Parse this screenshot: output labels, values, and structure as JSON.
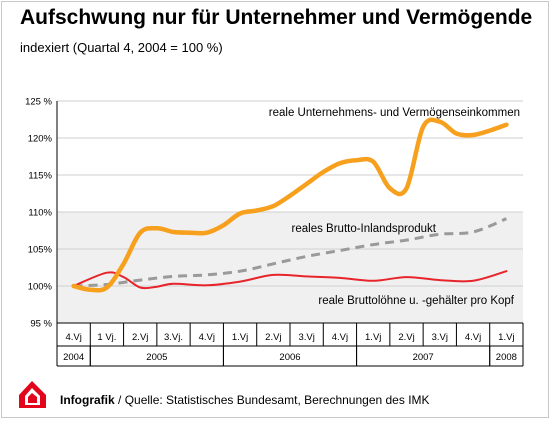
{
  "title": "Aufschwung nur für Unternehmer und Vermögende",
  "subtitle": "indexiert (Quartal 4, 2004 = 100 %)",
  "footer": {
    "label": "Infografik",
    "separator": " / ",
    "source": "Quelle: Statistisches Bundesamt, Berechnungen des IMK"
  },
  "logo": {
    "icon": "ig-metall-logo-icon",
    "color": "#e3051b"
  },
  "chart_data": {
    "type": "line",
    "ylim": [
      95,
      125
    ],
    "yticks": [
      95,
      100,
      105,
      110,
      115,
      120,
      125
    ],
    "ytick_labels": [
      "95 %",
      "100%",
      "105%",
      "110%",
      "115%",
      "120%",
      "125 %"
    ],
    "categories": [
      "4.Vj",
      "1 Vj.",
      "2.Vj",
      "3.Vj.",
      "4.Vj",
      "1.Vj",
      "2.Vj",
      "3.Vj",
      "4.Vj",
      "1.Vj",
      "2.Vj",
      "3.Vj",
      "4.Vj",
      "1.Vj"
    ],
    "years": [
      {
        "label": "2004",
        "from": 0,
        "to": 0
      },
      {
        "label": "2005",
        "from": 1,
        "to": 4
      },
      {
        "label": "2006",
        "from": 5,
        "to": 8
      },
      {
        "label": "2007",
        "from": 9,
        "to": 12
      },
      {
        "label": "2008",
        "from": 13,
        "to": 13
      }
    ],
    "grid": true,
    "series": [
      {
        "name": "reale Unternehmens- und Vermögenseinkommen",
        "color": "#f7a01d",
        "style": "solid",
        "x": [
          0,
          0.5,
          1,
          1.5,
          2,
          2.5,
          3,
          3.5,
          4,
          4.5,
          5,
          5.5,
          6,
          6.5,
          7,
          7.5,
          8,
          8.5,
          9,
          9.5,
          10,
          10.5,
          11,
          11.5,
          12,
          12.5,
          13
        ],
        "values": [
          100,
          99.5,
          99.8,
          103.0,
          107.2,
          107.8,
          107.3,
          107.2,
          107.2,
          108.2,
          109.8,
          110.2,
          110.8,
          112.2,
          113.8,
          115.4,
          116.6,
          117.0,
          116.8,
          113.2,
          113.2,
          121.5,
          122.2,
          120.6,
          120.4,
          121.0,
          121.8
        ]
      },
      {
        "name": "reales Brutto-Inlandsprodukt",
        "color": "#9a9a9a",
        "style": "dashed",
        "x": [
          0,
          1,
          2,
          3,
          4,
          5,
          6,
          7,
          8,
          9,
          10,
          11,
          12,
          13
        ],
        "values": [
          100,
          100.2,
          100.8,
          101.3,
          101.5,
          102.0,
          103.0,
          104.0,
          104.8,
          105.6,
          106.2,
          107.0,
          107.3,
          109.1
        ]
      },
      {
        "name": "reale Bruttolöhne u. -gehälter pro Kopf",
        "color": "#e8242b",
        "style": "solid",
        "x": [
          0,
          1,
          1.5,
          2,
          2.5,
          3,
          4,
          5,
          6,
          7,
          8,
          9,
          10,
          11,
          12,
          13
        ],
        "values": [
          100,
          101.8,
          101.2,
          99.8,
          99.9,
          100.3,
          100.1,
          100.6,
          101.5,
          101.3,
          101.1,
          100.7,
          101.2,
          100.8,
          100.7,
          102.0
        ]
      }
    ]
  }
}
